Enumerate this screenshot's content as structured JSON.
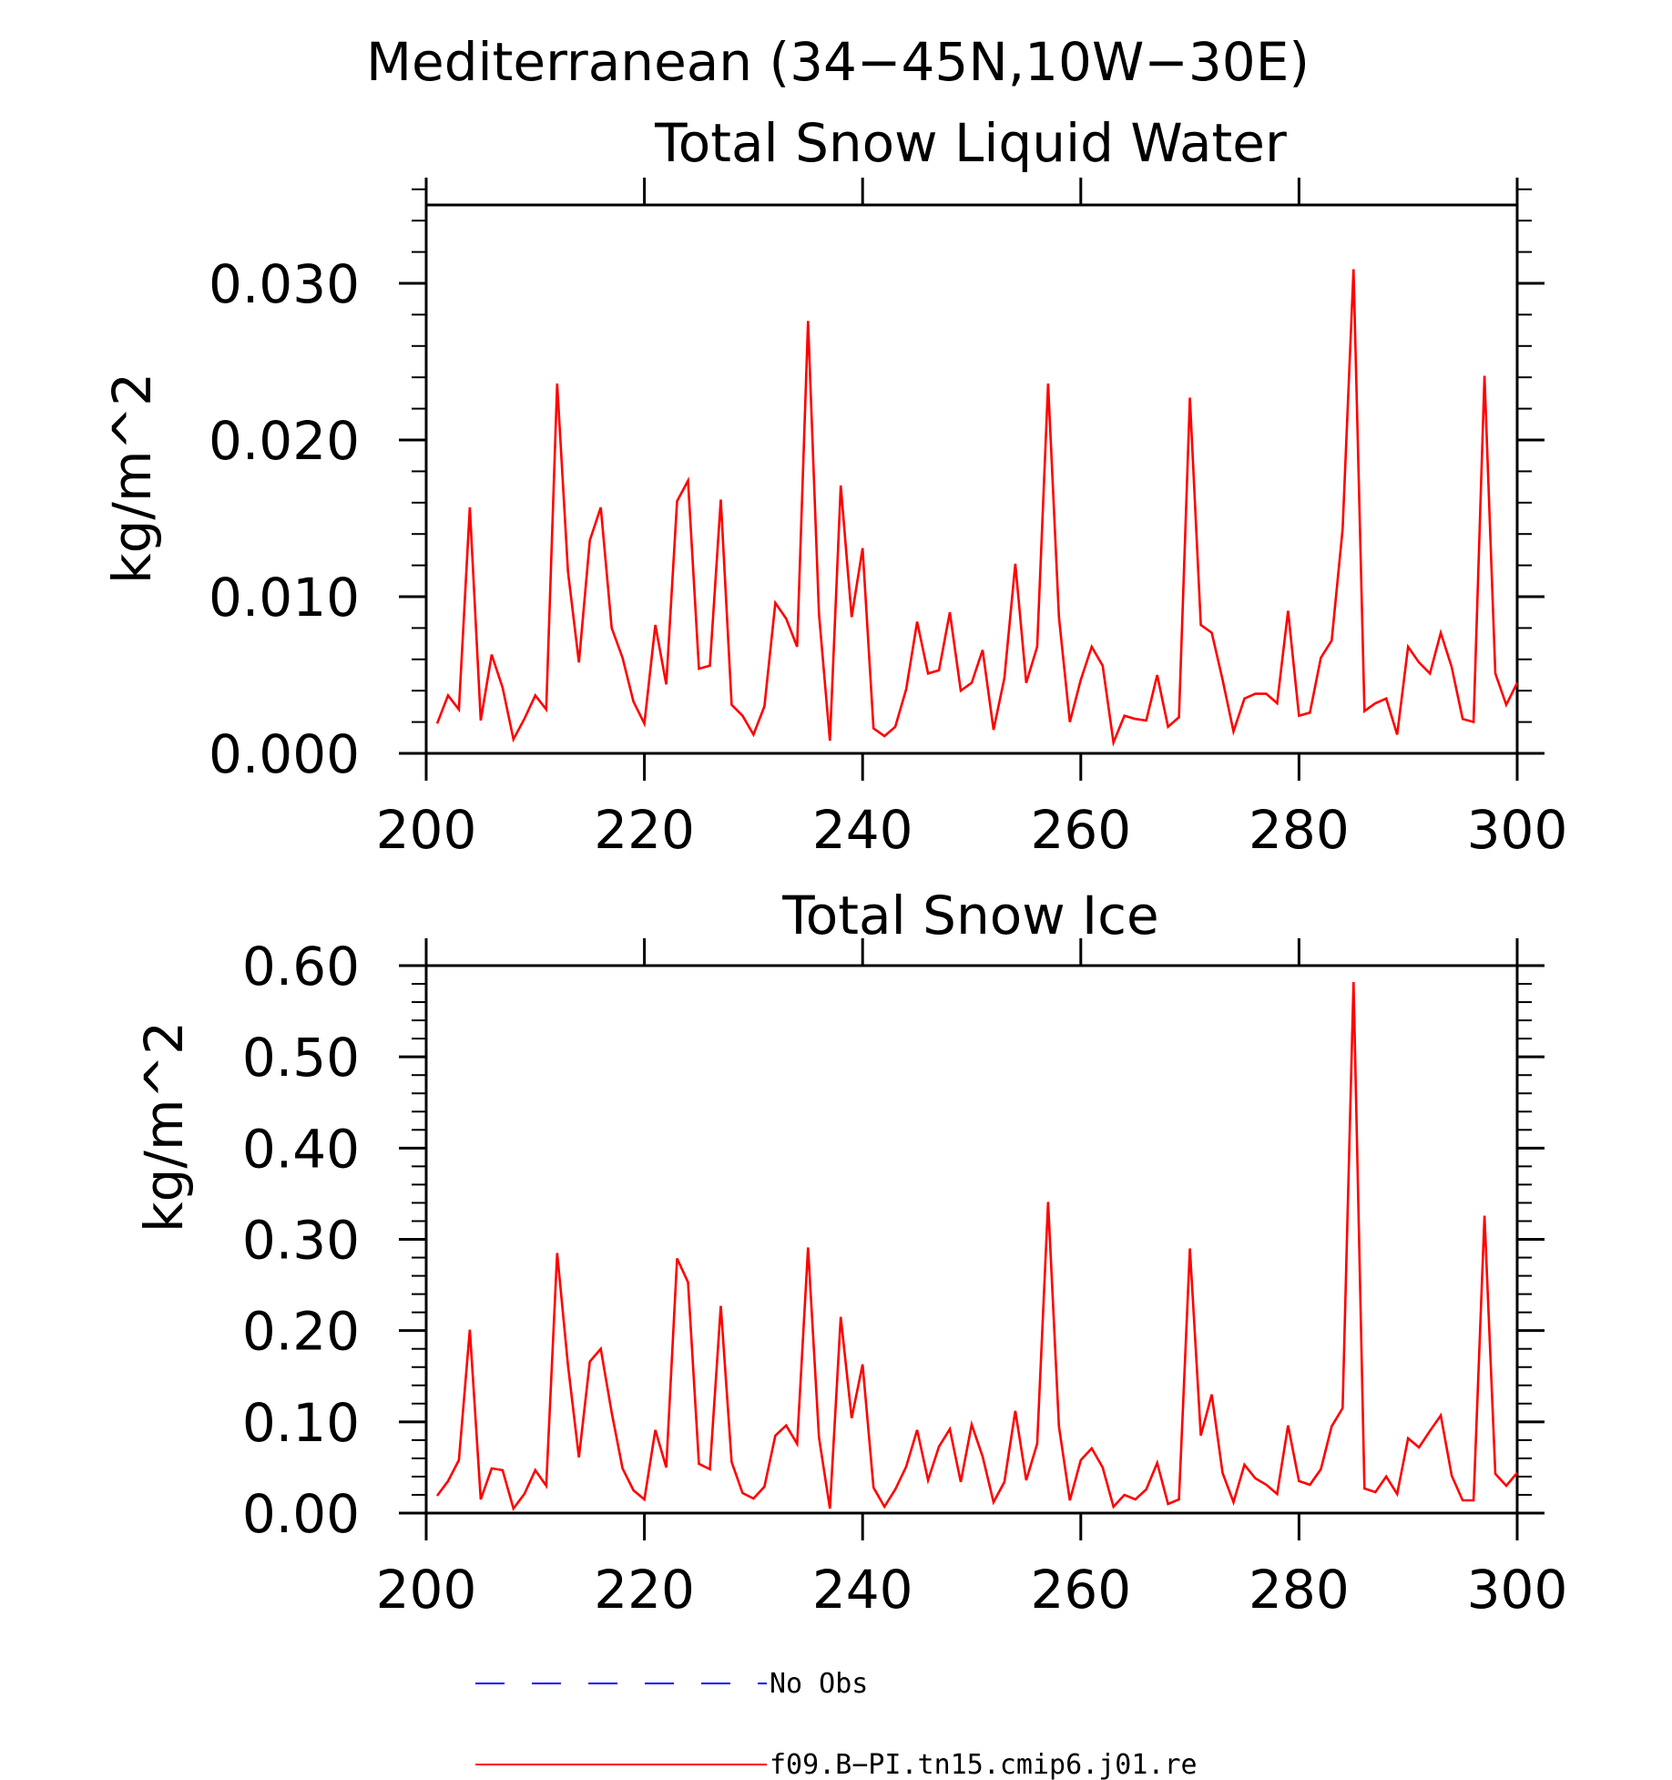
{
  "figure_title": "Mediterranean (34−45N,10W−30E)",
  "chart_data": [
    {
      "type": "line",
      "title": "Total Snow Liquid Water",
      "xlabel": "",
      "ylabel": "kg/m^2",
      "xlim": [
        200,
        300
      ],
      "ylim": [
        0,
        0.035
      ],
      "x_ticks": [
        200,
        220,
        240,
        260,
        280,
        300
      ],
      "x_tick_labels": [
        "200",
        "220",
        "240",
        "260",
        "280",
        "300"
      ],
      "y_ticks": [
        0.0,
        0.01,
        0.02,
        0.03
      ],
      "y_tick_labels": [
        "0.000",
        "0.010",
        "0.020",
        "0.030"
      ],
      "y_minor_step": 0.002,
      "x_minor_step": 20,
      "grid": false,
      "series": [
        {
          "name": "f09.B−PI.tn15.cmip6.j01.re",
          "color": "#ff0000",
          "x_start": 201,
          "x_step": 1,
          "values": [
            0.0019,
            0.0037,
            0.0028,
            0.0157,
            0.0021,
            0.0063,
            0.0042,
            0.0009,
            0.0022,
            0.0037,
            0.0028,
            0.0236,
            0.0116,
            0.0058,
            0.0136,
            0.0157,
            0.008,
            0.0061,
            0.0033,
            0.0019,
            0.0082,
            0.0044,
            0.0161,
            0.0174,
            0.0054,
            0.0056,
            0.0162,
            0.0031,
            0.0024,
            0.0012,
            0.003,
            0.0096,
            0.0086,
            0.0068,
            0.0276,
            0.0089,
            0.0008,
            0.0171,
            0.0087,
            0.0131,
            0.0016,
            0.0011,
            0.0017,
            0.0041,
            0.0084,
            0.0051,
            0.0053,
            0.009,
            0.004,
            0.0045,
            0.0066,
            0.0015,
            0.0048,
            0.0121,
            0.0045,
            0.0068,
            0.0236,
            0.0087,
            0.002,
            0.0047,
            0.0068,
            0.0056,
            0.0007,
            0.0024,
            0.0022,
            0.0021,
            0.005,
            0.0017,
            0.0023,
            0.0227,
            0.0082,
            0.0077,
            0.0047,
            0.0014,
            0.0035,
            0.0038,
            0.0038,
            0.0032,
            0.0091,
            0.0024,
            0.0026,
            0.0061,
            0.0072,
            0.0143,
            0.0309,
            0.0027,
            0.0032,
            0.0035,
            0.0012,
            0.0068,
            0.0058,
            0.0051,
            0.0077,
            0.0055,
            0.0022,
            0.002,
            0.0241,
            0.0051,
            0.0031,
            0.0045
          ]
        }
      ]
    },
    {
      "type": "line",
      "title": "Total Snow Ice",
      "xlabel": "",
      "ylabel": "kg/m^2",
      "xlim": [
        200,
        300
      ],
      "ylim": [
        0,
        0.6
      ],
      "x_ticks": [
        200,
        220,
        240,
        260,
        280,
        300
      ],
      "x_tick_labels": [
        "200",
        "220",
        "240",
        "260",
        "280",
        "300"
      ],
      "y_ticks": [
        0.0,
        0.1,
        0.2,
        0.3,
        0.4,
        0.5,
        0.6
      ],
      "y_tick_labels": [
        "0.00",
        "0.10",
        "0.20",
        "0.30",
        "0.40",
        "0.50",
        "0.60"
      ],
      "y_minor_step": 0.02,
      "x_minor_step": 20,
      "grid": false,
      "series": [
        {
          "name": "f09.B−PI.tn15.cmip6.j01.re",
          "color": "#ff0000",
          "x_start": 201,
          "x_step": 1,
          "values": [
            0.019,
            0.035,
            0.058,
            0.201,
            0.015,
            0.049,
            0.047,
            0.005,
            0.021,
            0.047,
            0.03,
            0.285,
            0.162,
            0.061,
            0.166,
            0.18,
            0.11,
            0.049,
            0.025,
            0.015,
            0.091,
            0.05,
            0.279,
            0.253,
            0.054,
            0.048,
            0.227,
            0.056,
            0.022,
            0.016,
            0.029,
            0.085,
            0.096,
            0.076,
            0.291,
            0.083,
            0.005,
            0.215,
            0.104,
            0.163,
            0.028,
            0.007,
            0.026,
            0.051,
            0.091,
            0.036,
            0.073,
            0.092,
            0.034,
            0.097,
            0.062,
            0.012,
            0.034,
            0.112,
            0.036,
            0.076,
            0.341,
            0.095,
            0.014,
            0.058,
            0.071,
            0.05,
            0.007,
            0.02,
            0.015,
            0.026,
            0.055,
            0.01,
            0.015,
            0.29,
            0.085,
            0.13,
            0.044,
            0.012,
            0.053,
            0.038,
            0.031,
            0.021,
            0.096,
            0.035,
            0.031,
            0.048,
            0.095,
            0.115,
            0.582,
            0.027,
            0.023,
            0.04,
            0.021,
            0.082,
            0.072,
            0.09,
            0.107,
            0.041,
            0.014,
            0.014,
            0.326,
            0.043,
            0.03,
            0.044
          ]
        }
      ]
    }
  ],
  "legend": {
    "placement": "bottom",
    "entries": [
      {
        "label": "No Obs",
        "color": "#0000ff",
        "style": "dashed"
      },
      {
        "label": "f09.B−PI.tn15.cmip6.j01.re",
        "color": "#ff0000",
        "style": "solid"
      }
    ]
  }
}
